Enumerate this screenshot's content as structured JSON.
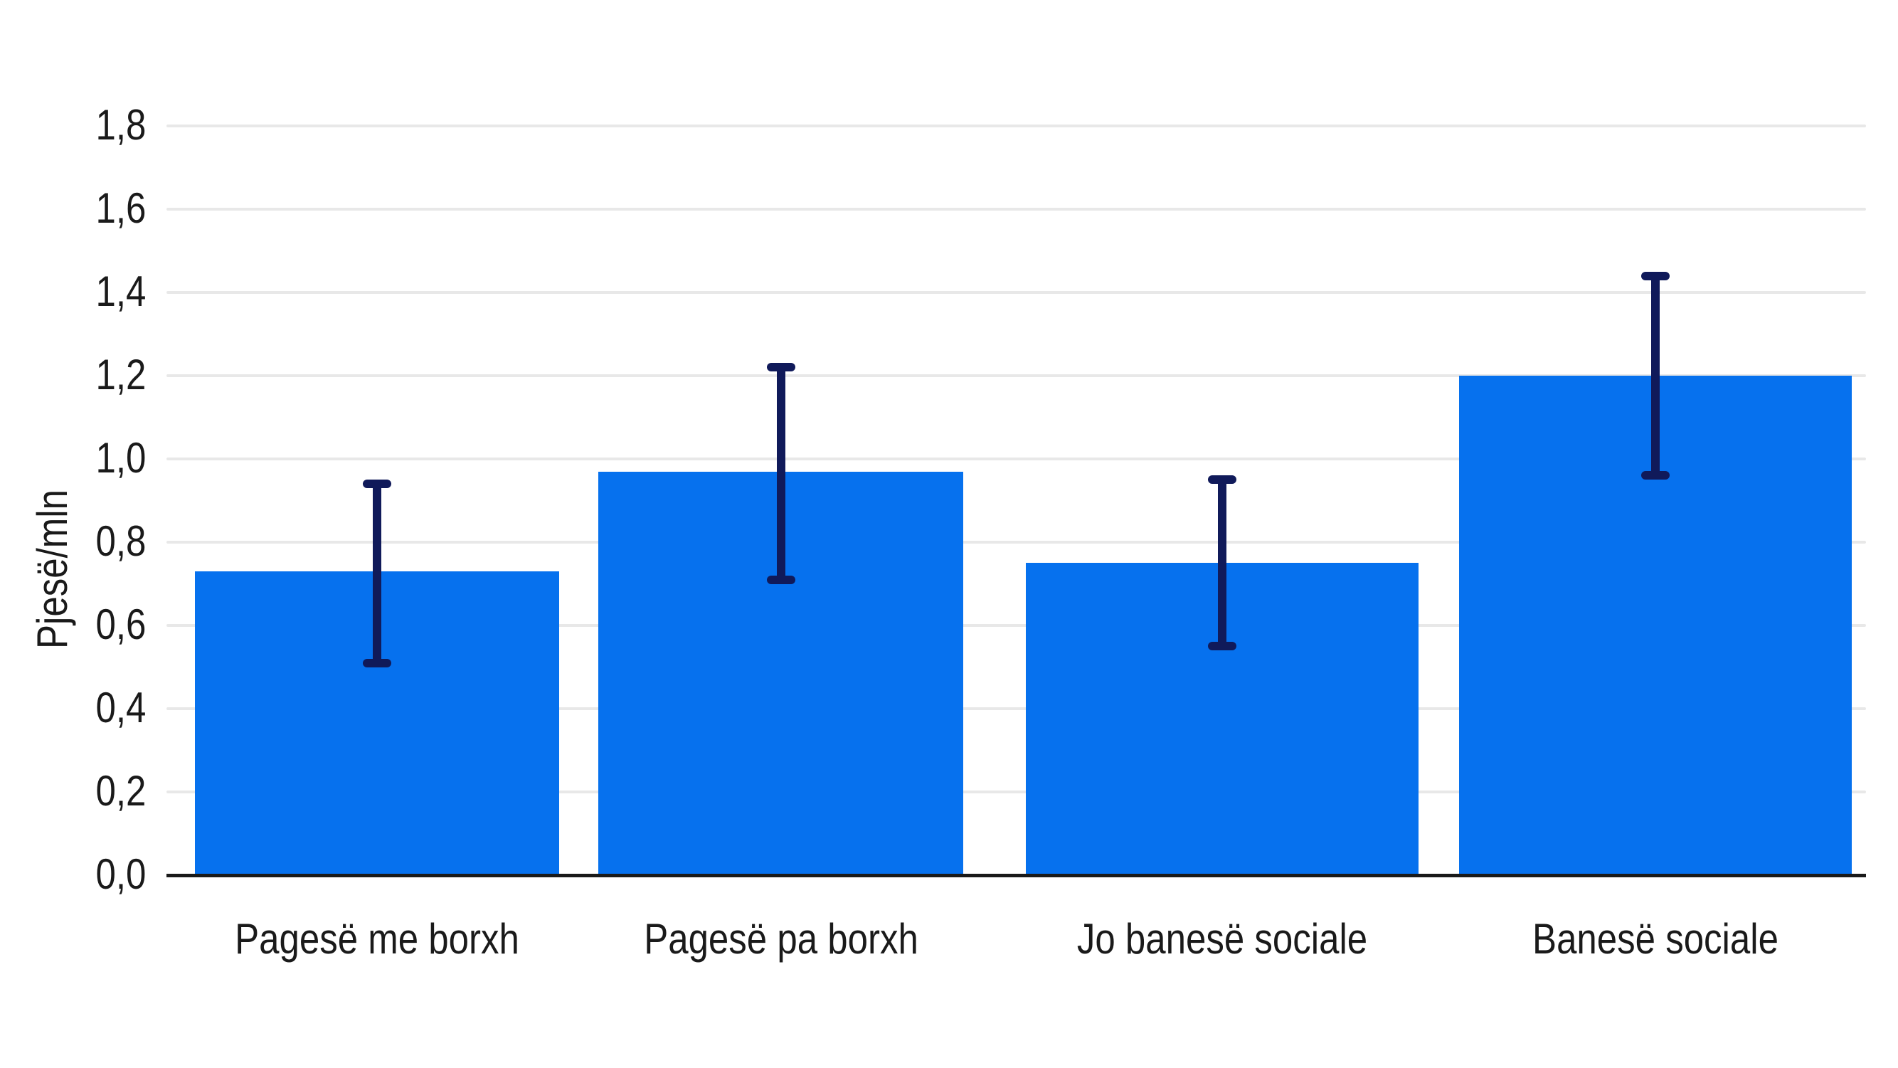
{
  "chart_data": {
    "type": "bar",
    "title": "",
    "xlabel": "",
    "ylabel": "Pjesë/mln",
    "categories": [
      "Pagesë me borxh",
      "Pagesë pa borxh",
      "Jo banesë sociale",
      "Banesë sociale"
    ],
    "values": [
      0.73,
      0.97,
      0.75,
      1.2
    ],
    "error_bars": {
      "low": [
        0.51,
        0.71,
        0.55,
        0.96
      ],
      "high": [
        0.94,
        1.22,
        0.95,
        1.44
      ]
    },
    "yticks": {
      "values": [
        0.0,
        0.2,
        0.4,
        0.6,
        0.8,
        1.0,
        1.2,
        1.4,
        1.6,
        1.8
      ],
      "labels": [
        "0,0",
        "0,2",
        "0,4",
        "0,6",
        "0,8",
        "1,0",
        "1,2",
        "1,4",
        "1,6",
        "1,8"
      ]
    },
    "ylim": [
      0,
      1.9
    ],
    "decimal_separator": ",",
    "grid": "horizontal",
    "legend": "none",
    "colors": {
      "bar": "#0671ee",
      "error_bar": "#101a5a",
      "axis": "#1a1a1a",
      "gridline": "#e8e8e8",
      "text": "#1a1a1a"
    }
  }
}
